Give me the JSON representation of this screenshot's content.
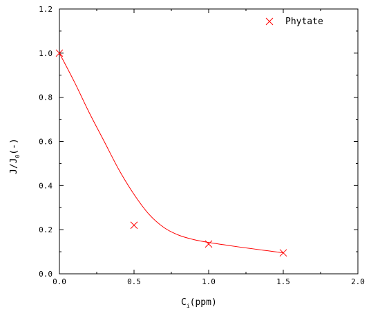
{
  "chart_data": {
    "type": "scatter",
    "series": [
      {
        "name": "Phytate",
        "color": "#ff0000",
        "marker": "x",
        "x": [
          0.0,
          0.5,
          1.0,
          1.5
        ],
        "y": [
          1.0,
          0.22,
          0.135,
          0.095
        ],
        "fit_curve": {
          "x": [
            0.0,
            0.1,
            0.2,
            0.3,
            0.4,
            0.5,
            0.6,
            0.7,
            0.8,
            0.9,
            1.0,
            1.1,
            1.2,
            1.3,
            1.4,
            1.5
          ],
          "y": [
            1.0,
            0.87,
            0.73,
            0.6,
            0.47,
            0.36,
            0.27,
            0.21,
            0.175,
            0.155,
            0.142,
            0.132,
            0.122,
            0.113,
            0.104,
            0.095
          ]
        }
      }
    ],
    "xlabel": {
      "base": "C",
      "sub": "i",
      "rest": "(ppm)"
    },
    "ylabel": {
      "base": "J/J",
      "sub": "0",
      "rest": "(-)"
    },
    "xlim": [
      0,
      2.0
    ],
    "ylim": [
      0,
      1.2
    ],
    "xticks": [
      "0.0",
      "0.5",
      "1.0",
      "1.5",
      "2.0"
    ],
    "xtick_values": [
      0,
      0.5,
      1.0,
      1.5,
      2.0
    ],
    "yticks": [
      "0.0",
      "0.2",
      "0.4",
      "0.6",
      "0.8",
      "1.0",
      "1.2"
    ],
    "ytick_values": [
      0,
      0.2,
      0.4,
      0.6,
      0.8,
      1.0,
      1.2
    ],
    "grid": false,
    "legend": "top-right"
  }
}
